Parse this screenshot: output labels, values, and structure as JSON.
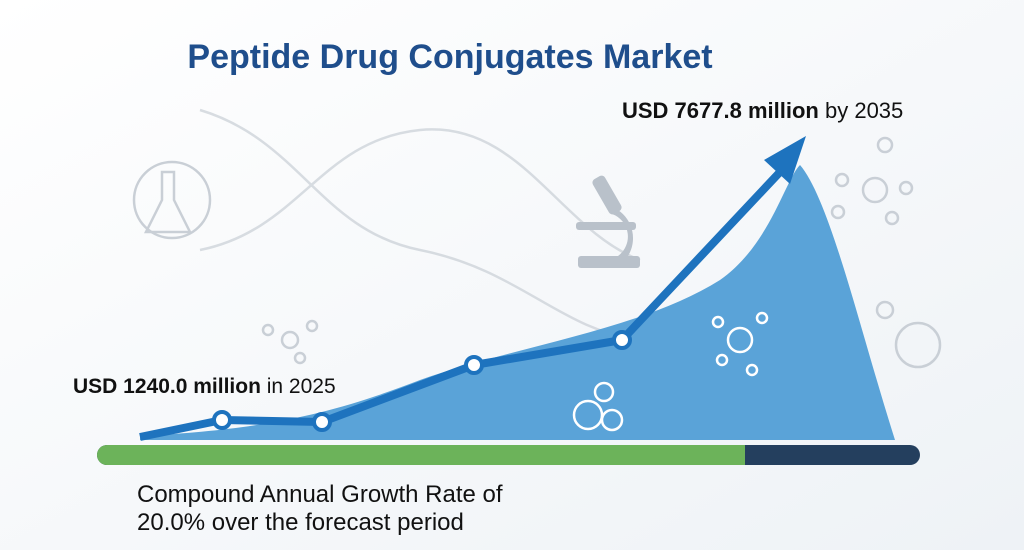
{
  "title": "Peptide Drug Conjugates Market",
  "start": {
    "amount": "USD 1240.0 million",
    "year_text": "in 2025"
  },
  "end": {
    "amount": "USD 7677.8 million",
    "year_text": "by 2035"
  },
  "cagr": {
    "line1": "Compound Annual Growth Rate of",
    "line2": "20.0% over the forecast period"
  }
}
